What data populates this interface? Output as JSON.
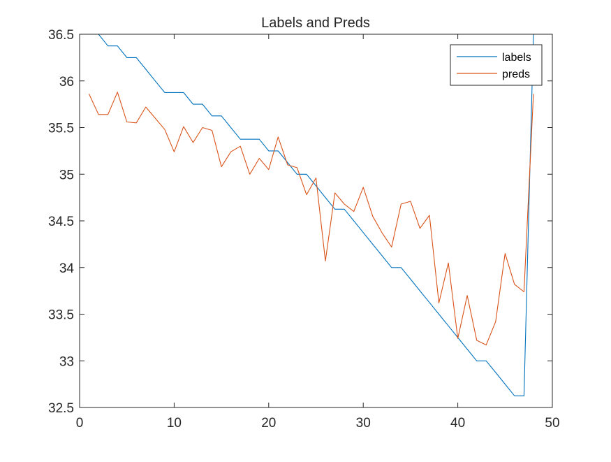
{
  "chart_data": {
    "type": "line",
    "title": "Labels and Preds",
    "xlabel": "",
    "ylabel": "",
    "xlim": [
      0,
      50
    ],
    "ylim": [
      32.5,
      36.5
    ],
    "xticks": [
      0,
      10,
      20,
      30,
      40,
      50
    ],
    "yticks": [
      32.5,
      33,
      33.5,
      34,
      34.5,
      35,
      35.5,
      36,
      36.5
    ],
    "xtick_labels": [
      "0",
      "10",
      "20",
      "30",
      "40",
      "50"
    ],
    "ytick_labels": [
      "32.5",
      "33",
      "33.5",
      "34",
      "34.5",
      "35",
      "35.5",
      "36",
      "36.5"
    ],
    "grid": false,
    "legend_position": "top-right",
    "x": [
      1,
      2,
      3,
      4,
      5,
      6,
      7,
      8,
      9,
      10,
      11,
      12,
      13,
      14,
      15,
      16,
      17,
      18,
      19,
      20,
      21,
      22,
      23,
      24,
      25,
      26,
      27,
      28,
      29,
      30,
      31,
      32,
      33,
      34,
      35,
      36,
      37,
      38,
      39,
      40,
      41,
      42,
      43,
      44,
      45,
      46,
      47,
      48
    ],
    "series": [
      {
        "name": "labels",
        "color": "#0072BD",
        "values": [
          36.5,
          36.5,
          36.375,
          36.375,
          36.25,
          36.25,
          36.125,
          36.0,
          35.875,
          35.875,
          35.875,
          35.75,
          35.75,
          35.625,
          35.625,
          35.5,
          35.375,
          35.375,
          35.375,
          35.25,
          35.25,
          35.125,
          35.0,
          35.0,
          34.875,
          34.75,
          34.625,
          34.625,
          34.5,
          34.375,
          34.25,
          34.125,
          34.0,
          34.0,
          33.875,
          33.75,
          33.625,
          33.5,
          33.375,
          33.25,
          33.125,
          33.0,
          33.0,
          32.875,
          32.75,
          32.625,
          32.625,
          36.5
        ]
      },
      {
        "name": "preds",
        "color": "#D95319",
        "values": [
          35.86,
          35.64,
          35.64,
          35.88,
          35.56,
          35.55,
          35.72,
          35.6,
          35.48,
          35.24,
          35.51,
          35.34,
          35.5,
          35.47,
          35.08,
          35.24,
          35.3,
          35.0,
          35.17,
          35.05,
          35.4,
          35.1,
          35.07,
          34.78,
          34.96,
          34.07,
          34.8,
          34.68,
          34.6,
          34.86,
          34.55,
          34.37,
          34.22,
          34.68,
          34.71,
          34.42,
          34.56,
          33.62,
          34.05,
          33.24,
          33.7,
          33.22,
          33.17,
          33.42,
          34.15,
          33.82,
          33.74,
          35.86
        ]
      }
    ]
  }
}
